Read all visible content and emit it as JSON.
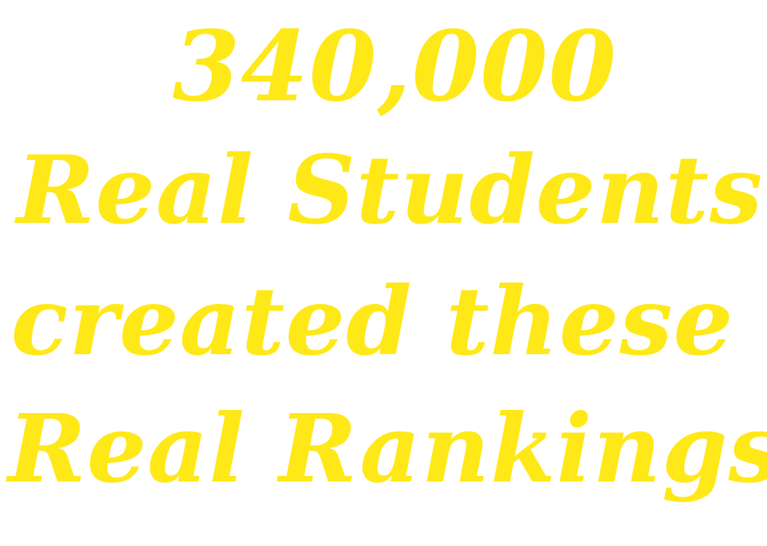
{
  "graphic": {
    "lines": [
      "340,000",
      "Real Students",
      "created these",
      "Real Rankings"
    ],
    "text_color": "#FFE817",
    "background_color": "#FFFFFF"
  }
}
